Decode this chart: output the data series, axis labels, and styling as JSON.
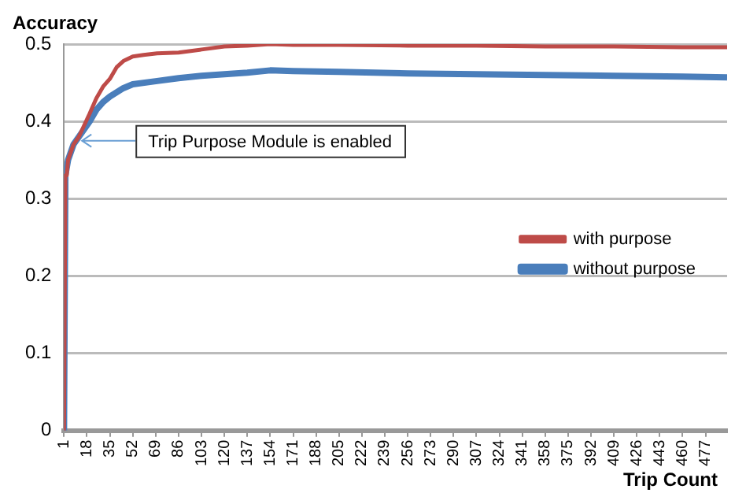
{
  "chart_data": {
    "type": "line",
    "xlabel": "Trip Count",
    "ylabel": "Accuracy",
    "xlim": [
      1,
      493
    ],
    "xticks": [
      1,
      18,
      35,
      52,
      69,
      86,
      103,
      120,
      137,
      154,
      171,
      188,
      205,
      222,
      239,
      256,
      273,
      290,
      307,
      324,
      341,
      358,
      375,
      392,
      409,
      426,
      443,
      460,
      477
    ],
    "ylim": [
      0,
      0.5
    ],
    "yticks": [
      0,
      0.1,
      0.2,
      0.3,
      0.4,
      0.5
    ],
    "grid": "y",
    "legend": "right",
    "marker": "none",
    "line_style": "solid",
    "annotations": [
      {
        "text": "Trip Purpose Module is enabled",
        "x": 12,
        "y": 0.375
      }
    ],
    "series": [
      {
        "name": "without purpose",
        "color": "#4a7ebb",
        "x": [
          1,
          2,
          4,
          8,
          12,
          16,
          20,
          25,
          30,
          35,
          45,
          52,
          69,
          86,
          103,
          120,
          137,
          154,
          171,
          205,
          256,
          307,
          358,
          409,
          460,
          493
        ],
        "values": [
          0,
          0.33,
          0.35,
          0.37,
          0.38,
          0.39,
          0.4,
          0.415,
          0.425,
          0.432,
          0.443,
          0.448,
          0.452,
          0.456,
          0.459,
          0.461,
          0.463,
          0.466,
          0.465,
          0.464,
          0.462,
          0.461,
          0.46,
          0.459,
          0.458,
          0.457
        ]
      },
      {
        "name": "with purpose",
        "color": "#be4b48",
        "x": [
          1,
          2,
          3,
          4,
          6,
          8,
          12,
          16,
          20,
          25,
          30,
          35,
          40,
          45,
          52,
          60,
          70,
          86,
          103,
          120,
          137,
          154,
          171,
          205,
          256,
          307,
          358,
          409,
          460,
          493
        ],
        "values": [
          0,
          0.33,
          0.33,
          0.35,
          0.36,
          0.37,
          0.38,
          0.395,
          0.41,
          0.43,
          0.445,
          0.455,
          0.47,
          0.478,
          0.484,
          0.486,
          0.488,
          0.489,
          0.493,
          0.497,
          0.498,
          0.5,
          0.499,
          0.499,
          0.498,
          0.498,
          0.497,
          0.497,
          0.496,
          0.496
        ]
      }
    ]
  }
}
